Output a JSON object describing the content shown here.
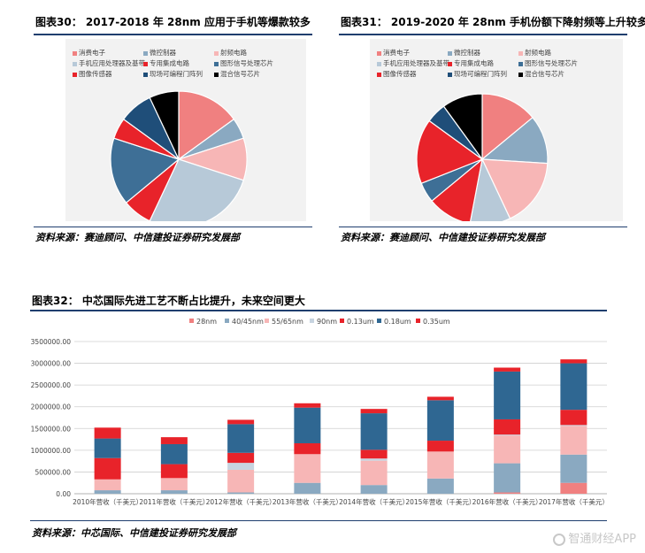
{
  "figures": {
    "fig30": {
      "title": "图表30：  2017-2018 年 28nm 应用于手机等爆款较多",
      "source": "资料来源：赛迪顾问、中信建投证券研究发展部"
    },
    "fig31": {
      "title": "图表31：  2019-2020 年 28nm 手机份额下降射频等上升较多",
      "source": "资料来源：赛迪顾问、中信建投证券研究发展部"
    },
    "fig32": {
      "title": "图表32：  中芯国际先进工艺不断占比提升，未来空间更大",
      "source": "资料来源：中芯国际、中信建投证券研究发展部"
    }
  },
  "watermark": "智通财经APP",
  "chart_data": [
    {
      "type": "pie",
      "categories": [
        "消费电子",
        "微控制器",
        "射频电路",
        "手机应用处理器及基带",
        "专用集成电路",
        "图形信号处理芯片",
        "图像传感器",
        "现场可编程门阵列",
        "混合信号芯片"
      ],
      "colors": [
        "#f08080",
        "#8aa9c1",
        "#f7b6b6",
        "#b7c9d8",
        "#e8232a",
        "#3e6f96",
        "#e8232a",
        "#1f4e79",
        "#000000"
      ],
      "values": [
        15,
        5,
        10,
        27,
        7,
        16,
        5,
        8,
        7
      ],
      "legend": "top"
    },
    {
      "type": "pie",
      "categories": [
        "消费电子",
        "微控制器",
        "射频电路",
        "手机应用处理器及基带",
        "专用集成电路",
        "图形信号处理芯片",
        "图像传感器",
        "现场可编程门阵列",
        "混合信号芯片"
      ],
      "colors": [
        "#f08080",
        "#8aa9c1",
        "#f7b6b6",
        "#b7c9d8",
        "#e8232a",
        "#3e6f96",
        "#e8232a",
        "#1f4e79",
        "#000000"
      ],
      "values": [
        14,
        12,
        17,
        10,
        11,
        5,
        16,
        5,
        10
      ],
      "legend": "top"
    },
    {
      "type": "bar",
      "stacked": true,
      "categories": [
        "2010年营收（千美元）",
        "2011年营收（千美元）",
        "2012年营收（千美元）",
        "2013年营收（千美元）",
        "2014年营收（千美元）",
        "2015年营收（千美元）",
        "2016年营收（千美元）",
        "2017年营收（千美元）"
      ],
      "series": [
        {
          "name": "28nm",
          "color": "#f08080",
          "values": [
            0,
            0,
            0,
            0,
            0,
            0,
            30000,
            250000
          ]
        },
        {
          "name": "40/45nm",
          "color": "#8aa9c1",
          "values": [
            80000,
            80000,
            30000,
            250000,
            200000,
            350000,
            670000,
            650000
          ]
        },
        {
          "name": "55/65nm",
          "color": "#f7b6b6",
          "values": [
            250000,
            280000,
            520000,
            660000,
            560000,
            620000,
            640000,
            660000
          ]
        },
        {
          "name": "90nm",
          "color": "#c7d4e0",
          "values": [
            0,
            0,
            160000,
            0,
            50000,
            0,
            20000,
            20000
          ]
        },
        {
          "name": "0.13um",
          "color": "#e8232a",
          "values": [
            490000,
            320000,
            230000,
            250000,
            200000,
            250000,
            350000,
            350000
          ]
        },
        {
          "name": "0.18um",
          "color": "#2f6792",
          "values": [
            450000,
            460000,
            660000,
            820000,
            840000,
            930000,
            1100000,
            1070000
          ]
        },
        {
          "name": "0.35um",
          "color": "#e8232a",
          "values": [
            250000,
            160000,
            100000,
            100000,
            100000,
            80000,
            90000,
            90000
          ]
        }
      ],
      "y_ticks": [
        "0.00",
        "500000.00",
        "1000000.00",
        "1500000.00",
        "2000000.00",
        "2500000.00",
        "3000000.00",
        "3500000.00"
      ],
      "ylim": [
        0,
        3500000
      ],
      "legend": "top",
      "grid": true
    }
  ]
}
